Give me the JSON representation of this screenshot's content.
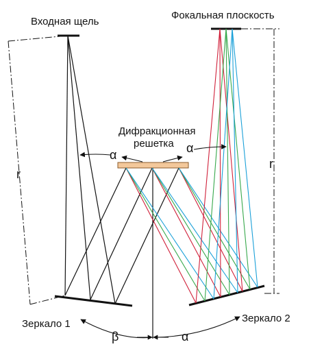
{
  "labels": {
    "entrance_slit": "Входная щель",
    "focal_plane": "Фокальная плоскость",
    "grating_line1": "Дифракционная",
    "grating_line2": "решетка",
    "mirror1": "Зеркало 1",
    "mirror2": "Зеркало 2",
    "r_left": "r",
    "r_right": "r",
    "alpha_left": "α",
    "alpha_right": "α",
    "alpha_bottom": "α",
    "beta_bottom": "β"
  },
  "colors": {
    "line": "#111111",
    "grating_fill": "#f3c89b",
    "grating_stroke": "#8a5a2b",
    "ray_red": "#d0203a",
    "ray_green": "#37a84b",
    "ray_blue": "#1aa0d8"
  }
}
